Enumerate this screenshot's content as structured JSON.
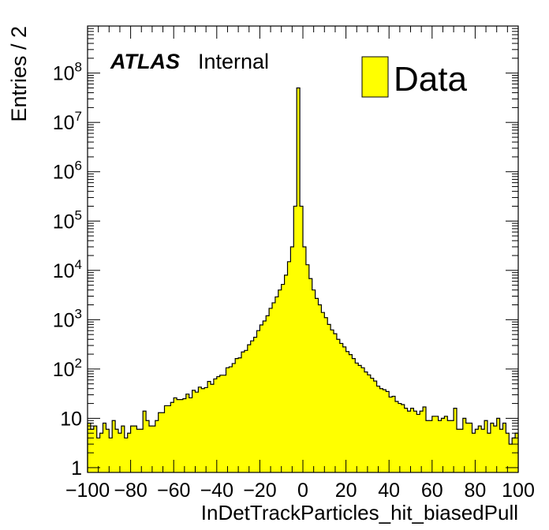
{
  "chart_data": {
    "type": "bar",
    "style": "histogram",
    "ylabel": "Entries / 2",
    "xlabel": "InDetTrackParticles_hit_biasedPull",
    "xlim": [
      -100,
      100
    ],
    "ylim": [
      0.8,
      900000000.0
    ],
    "yscale": "log",
    "bin_width": 2,
    "fill_color": "#ffff00",
    "line_color": "#000000",
    "atlas_label": "ATLAS",
    "atlas_sublabel": "Internal",
    "legend": {
      "position": "top-right",
      "label": "Data"
    },
    "x_ticks": [
      "−100",
      "−80",
      "−60",
      "−40",
      "−20",
      "0",
      "20",
      "40",
      "60",
      "80",
      "100"
    ],
    "y_ticks": [
      {
        "value": 1,
        "base": "1",
        "exp": ""
      },
      {
        "value": 10,
        "base": "10",
        "exp": ""
      },
      {
        "value": 100,
        "base": "10",
        "exp": "2"
      },
      {
        "value": 1000,
        "base": "10",
        "exp": "3"
      },
      {
        "value": 10000,
        "base": "10",
        "exp": "4"
      },
      {
        "value": 100000,
        "base": "10",
        "exp": "5"
      },
      {
        "value": 1000000,
        "base": "10",
        "exp": "6"
      },
      {
        "value": 10000000,
        "base": "10",
        "exp": "7"
      },
      {
        "value": 100000000,
        "base": "10",
        "exp": "8"
      }
    ],
    "values": [
      8,
      6,
      7,
      4,
      5,
      8,
      6,
      4,
      9,
      6,
      5,
      7,
      4,
      5,
      7,
      7,
      6,
      6,
      14,
      9,
      7,
      7,
      9,
      13,
      13,
      18,
      18,
      21,
      26,
      24,
      24,
      25,
      31,
      26,
      37,
      34,
      43,
      40,
      42,
      56,
      49,
      63,
      70,
      75,
      75,
      106,
      111,
      129,
      163,
      168,
      222,
      238,
      310,
      372,
      440,
      600,
      783,
      940,
      1200,
      1700,
      2200,
      2900,
      4000,
      5200,
      8000,
      15000,
      30000,
      200000,
      50000000,
      200000,
      30000,
      13000,
      6800,
      4000,
      2700,
      2000,
      1400,
      1100,
      800,
      620,
      520,
      400,
      330,
      280,
      226,
      196,
      163,
      132,
      118,
      106,
      87,
      76,
      65,
      57,
      45,
      40,
      38,
      35,
      27,
      28,
      22,
      20,
      19,
      16,
      14,
      16,
      14,
      12,
      14,
      17,
      9,
      9,
      11,
      11,
      9,
      10,
      11,
      9,
      9,
      16,
      6,
      6,
      10,
      8,
      8,
      5,
      6,
      7,
      6,
      9,
      5,
      8,
      7,
      10,
      6,
      8,
      5,
      3,
      4,
      5
    ]
  }
}
